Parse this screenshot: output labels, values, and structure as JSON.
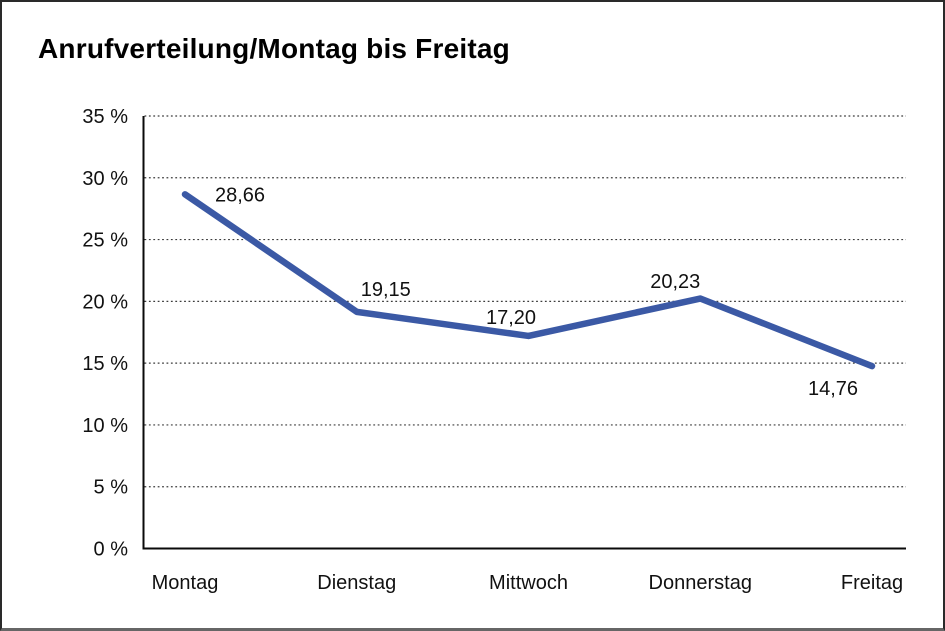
{
  "title": "Anrufverteilung/Montag bis Freitag",
  "chart_data": {
    "type": "line",
    "title": "Anrufverteilung/Montag bis Freitag",
    "categories": [
      "Montag",
      "Dienstag",
      "Mittwoch",
      "Donnerstag",
      "Freitag"
    ],
    "values": [
      28.66,
      19.15,
      17.2,
      20.23,
      14.76
    ],
    "value_labels": [
      "28,66",
      "19,15",
      "17,20",
      "20,23",
      "14,76"
    ],
    "xlabel": "",
    "ylabel": "",
    "ylim": [
      0,
      35
    ],
    "ytick_step": 5,
    "ytick_labels": [
      "0 %",
      "5 %",
      "10 %",
      "15 %",
      "20 %",
      "25 %",
      "30 %",
      "35 %"
    ],
    "grid": "horizontal-dotted",
    "legend": "none",
    "colors": {
      "line": "#3B59A5",
      "axis": "#0a0a0a",
      "grid": "#3c3c3c",
      "text": "#111111",
      "background": "#ffffff"
    }
  }
}
